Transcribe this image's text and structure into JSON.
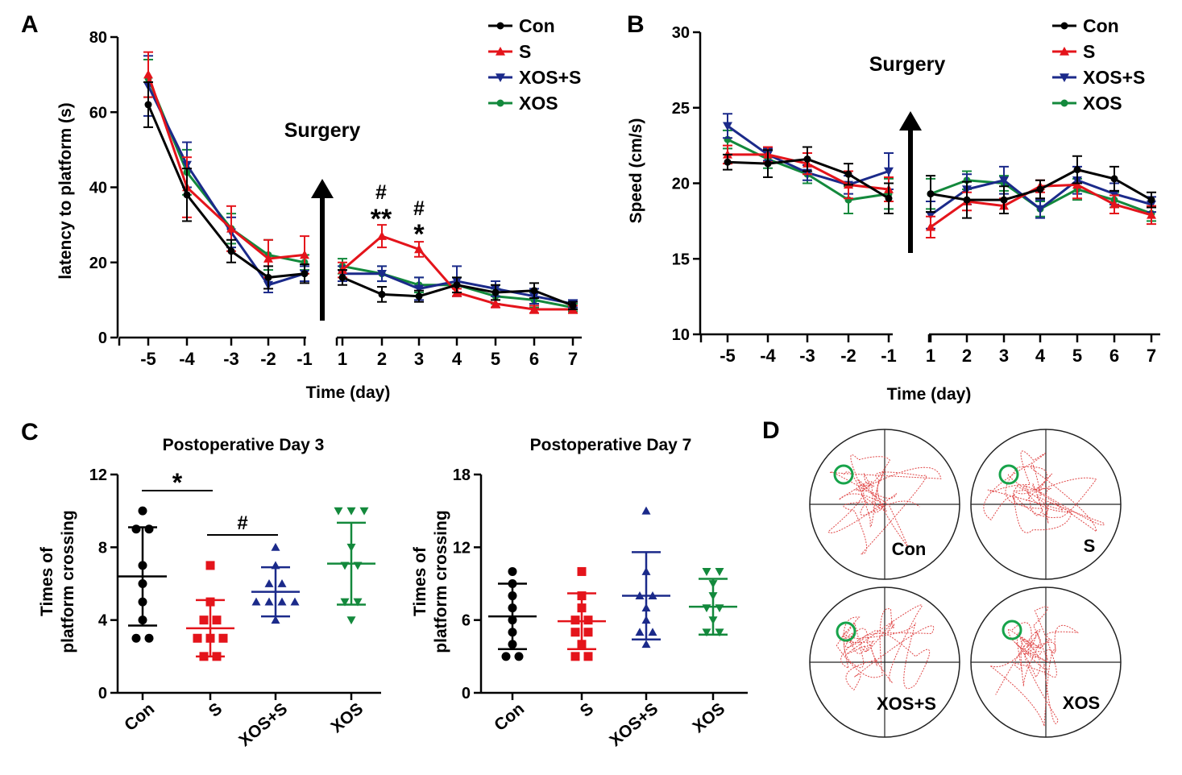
{
  "panel_labels": [
    "A",
    "B",
    "C",
    "D"
  ],
  "colors": {
    "Con": "#000000",
    "S": "#e4141b",
    "XOS+S": "#1b2a8a",
    "XOS": "#13893c"
  },
  "chart_data": [
    {
      "panel": "A",
      "type": "line",
      "xlabel": "Time (day)",
      "ylabel": "latency to platform (s)",
      "ylim": [
        0,
        80
      ],
      "yticks": [
        "0",
        "20",
        "40",
        "60",
        "80"
      ],
      "categories": [
        "-5",
        "-4",
        "-3",
        "-2",
        "-1",
        "1",
        "2",
        "3",
        "4",
        "5",
        "6",
        "7"
      ],
      "annotation": "Surgery",
      "markers": [
        {
          "x": "2",
          "text": "#"
        },
        {
          "x": "2",
          "text": "**"
        },
        {
          "x": "3",
          "text": "#"
        },
        {
          "x": "3",
          "text": "*"
        }
      ],
      "legend": [
        "Con",
        "S",
        "XOS+S",
        "XOS"
      ],
      "legend_position": "top-right",
      "series": [
        {
          "name": "Con",
          "values": [
            62,
            38,
            23,
            16,
            17,
            16,
            11.5,
            11,
            14,
            12,
            12.5,
            8.5
          ],
          "err": [
            6,
            7,
            3,
            3,
            2.5,
            2,
            2,
            1.5,
            2,
            2,
            2,
            1
          ]
        },
        {
          "name": "S",
          "values": [
            70,
            40,
            29,
            21,
            22,
            18,
            27,
            23.5,
            12,
            9,
            7.5,
            7.5
          ],
          "err": [
            6,
            8,
            6,
            5,
            5,
            2,
            3,
            2,
            1,
            1,
            1,
            1
          ]
        },
        {
          "name": "XOS+S",
          "values": [
            67,
            46,
            28,
            14,
            17,
            17,
            17,
            13,
            15,
            13,
            11,
            9
          ],
          "err": [
            8,
            6,
            4,
            2,
            2,
            2,
            2,
            3,
            4,
            2,
            2,
            1
          ]
        },
        {
          "name": "XOS",
          "values": [
            69,
            44,
            29,
            22,
            20,
            19,
            17,
            14,
            14,
            11,
            10,
            8
          ],
          "err": [
            5,
            6,
            4,
            4,
            2,
            2,
            2,
            2,
            2,
            2,
            2,
            1
          ]
        }
      ]
    },
    {
      "panel": "B",
      "type": "line",
      "xlabel": "Time (day)",
      "ylabel": "Speed (cm/s)",
      "ylim": [
        10,
        30
      ],
      "yticks": [
        "10",
        "15",
        "20",
        "25",
        "30"
      ],
      "categories": [
        "-5",
        "-4",
        "-3",
        "-2",
        "-1",
        "1",
        "2",
        "3",
        "4",
        "5",
        "6",
        "7"
      ],
      "annotation": "Surgery",
      "legend": [
        "Con",
        "S",
        "XOS+S",
        "XOS"
      ],
      "legend_position": "top-right",
      "series": [
        {
          "name": "Con",
          "values": [
            21.4,
            21.3,
            21.6,
            20.6,
            19.0,
            19.3,
            18.9,
            18.9,
            19.6,
            20.9,
            20.3,
            18.9
          ],
          "err": [
            0.5,
            0.9,
            0.8,
            0.7,
            1.0,
            1.2,
            1.2,
            0.9,
            0.6,
            0.9,
            0.8,
            0.5
          ]
        },
        {
          "name": "S",
          "values": [
            21.9,
            21.9,
            21.3,
            19.9,
            19.6,
            17.1,
            18.8,
            18.5,
            19.8,
            19.9,
            18.6,
            17.9
          ],
          "err": [
            0.6,
            0.5,
            0.7,
            0.9,
            0.8,
            0.7,
            0.6,
            0.5,
            0.4,
            0.9,
            0.6,
            0.6
          ]
        },
        {
          "name": "XOS+S",
          "values": [
            23.8,
            21.9,
            20.7,
            19.9,
            20.8,
            17.9,
            19.6,
            20.2,
            18.3,
            20.2,
            19.3,
            18.6
          ],
          "err": [
            0.8,
            0.4,
            0.5,
            0.6,
            1.2,
            0.9,
            1.0,
            0.9,
            0.6,
            0.9,
            0.7,
            0.5
          ]
        },
        {
          "name": "XOS",
          "values": [
            22.9,
            21.6,
            20.6,
            18.9,
            19.3,
            19.3,
            20.2,
            20.0,
            18.3,
            19.6,
            18.9,
            18.0
          ],
          "err": [
            0.6,
            0.6,
            0.6,
            0.9,
            1.0,
            1.0,
            0.6,
            0.5,
            0.5,
            0.7,
            0.5,
            0.5
          ]
        }
      ]
    },
    {
      "panel": "C",
      "title": "Postoperative Day 3",
      "type": "scatter",
      "ylabel_lines": [
        "Times of",
        "platform crossing"
      ],
      "ylim": [
        0,
        12
      ],
      "yticks": [
        "0",
        "4",
        "8",
        "12"
      ],
      "categories": [
        "Con",
        "S",
        "XOS+S",
        "XOS"
      ],
      "markers": [
        {
          "text": "*",
          "from": "Con",
          "to": "S"
        },
        {
          "text": "#",
          "from": "S",
          "to": "XOS+S"
        }
      ],
      "groups": [
        {
          "name": "Con",
          "points": [
            10,
            9,
            9,
            7,
            6,
            5,
            4,
            3,
            3
          ],
          "mean": 6.4,
          "sd": 2.7
        },
        {
          "name": "S",
          "points": [
            7,
            5,
            4,
            4,
            3,
            3,
            3,
            2,
            2
          ],
          "mean": 3.55,
          "sd": 1.55
        },
        {
          "name": "XOS+S",
          "points": [
            8,
            7,
            6,
            6,
            5,
            5,
            5,
            5,
            4
          ],
          "mean": 5.55,
          "sd": 1.35
        },
        {
          "name": "XOS",
          "points": [
            10,
            10,
            10,
            8,
            7,
            7,
            5,
            5,
            4
          ],
          "mean": 7.1,
          "sd": 2.25
        }
      ]
    },
    {
      "panel": "C",
      "title": "Postoperative Day 7",
      "type": "scatter",
      "ylabel_lines": [
        "Times of",
        "platform crossing"
      ],
      "ylim": [
        0,
        18
      ],
      "yticks": [
        "0",
        "6",
        "12",
        "18"
      ],
      "categories": [
        "Con",
        "S",
        "XOS+S",
        "XOS"
      ],
      "groups": [
        {
          "name": "Con",
          "points": [
            10,
            9,
            8,
            7,
            6,
            5,
            4,
            3,
            3
          ],
          "mean": 6.3,
          "sd": 2.7
        },
        {
          "name": "S",
          "points": [
            10,
            8,
            7,
            6,
            6,
            5,
            5,
            4,
            3,
            3
          ],
          "mean": 5.9,
          "sd": 2.3
        },
        {
          "name": "XOS+S",
          "points": [
            15,
            10,
            8,
            8,
            7,
            6,
            5,
            5,
            4
          ],
          "mean": 8.0,
          "sd": 3.6
        },
        {
          "name": "XOS",
          "points": [
            10,
            10,
            9,
            8,
            7,
            7,
            6,
            5,
            5
          ],
          "mean": 7.1,
          "sd": 2.3
        }
      ]
    }
  ],
  "panel_d": {
    "labels": [
      "Con",
      "S",
      "XOS+S",
      "XOS"
    ]
  }
}
